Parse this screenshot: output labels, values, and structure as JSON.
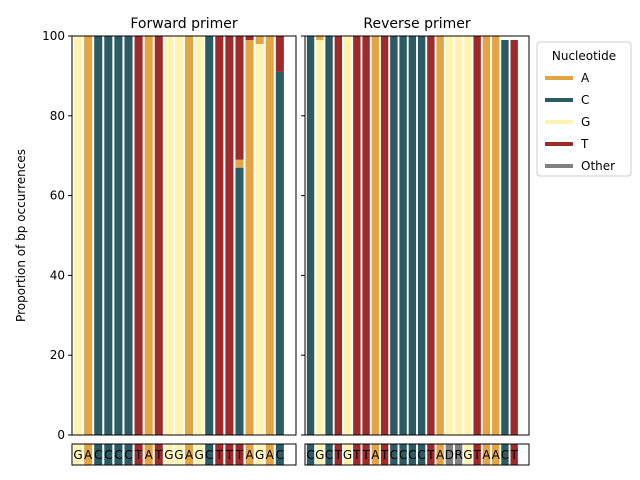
{
  "chart_data": {
    "type": "bar",
    "stacked": true,
    "ylabel": "Proportion of bp occurrences",
    "ylim": [
      0,
      100
    ],
    "yticks": [
      0,
      20,
      40,
      60,
      80,
      100
    ],
    "legend": {
      "title": "Nucleotide",
      "placement": "outside-top-right",
      "entries": [
        {
          "name": "A",
          "color": "#e3a544"
        },
        {
          "name": "C",
          "color": "#2d5b63"
        },
        {
          "name": "G",
          "color": "#fff3b0"
        },
        {
          "name": "T",
          "color": "#9e2b2b"
        },
        {
          "name": "Other",
          "color": "#808080"
        }
      ]
    },
    "panels": [
      {
        "title": "Forward primer",
        "sequence": "GACCCCTATGGAGCTTTAGAC",
        "sequence_colors": [
          "G",
          "A",
          "C",
          "C",
          "C",
          "C",
          "T",
          "A",
          "T",
          "G",
          "G",
          "A",
          "G",
          "C",
          "T",
          "T",
          "T",
          "A",
          "G",
          "A",
          "C"
        ],
        "bars": [
          {
            "G": 100
          },
          {
            "A": 100
          },
          {
            "C": 100
          },
          {
            "C": 100
          },
          {
            "C": 100
          },
          {
            "C": 100
          },
          {
            "T": 100
          },
          {
            "A": 100
          },
          {
            "T": 100
          },
          {
            "G": 100
          },
          {
            "G": 100
          },
          {
            "A": 100
          },
          {
            "G": 100
          },
          {
            "C": 100
          },
          {
            "T": 100
          },
          {
            "T": 100
          },
          {
            "C": 67,
            "T": 31,
            "A": 2
          },
          {
            "A": 99,
            "T": 1
          },
          {
            "G": 98,
            "A": 2
          },
          {
            "A": 100
          },
          {
            "C": 91,
            "T": 9
          }
        ]
      },
      {
        "title": "Reverse primer",
        "sequence": "CGCTGTTATCCCCTADRGTAACT",
        "sequence_colors": [
          "C",
          "G",
          "C",
          "T",
          "G",
          "T",
          "T",
          "A",
          "T",
          "C",
          "C",
          "C",
          "C",
          "T",
          "A",
          "Other",
          "Other",
          "G",
          "T",
          "A",
          "A",
          "C",
          "T"
        ],
        "bars": [
          {
            "C": 100
          },
          {
            "G": 99,
            "A": 1
          },
          {
            "C": 100
          },
          {
            "T": 100
          },
          {
            "G": 100
          },
          {
            "T": 100
          },
          {
            "T": 100
          },
          {
            "A": 100
          },
          {
            "T": 100
          },
          {
            "C": 100
          },
          {
            "C": 100
          },
          {
            "C": 100
          },
          {
            "C": 100
          },
          {
            "T": 100
          },
          {
            "A": 100
          },
          {
            "G": 100
          },
          {
            "G": 100
          },
          {
            "G": 100
          },
          {
            "T": 100
          },
          {
            "A": 100
          },
          {
            "A": 100
          },
          {
            "C": 99
          },
          {
            "T": 99
          }
        ]
      }
    ]
  }
}
